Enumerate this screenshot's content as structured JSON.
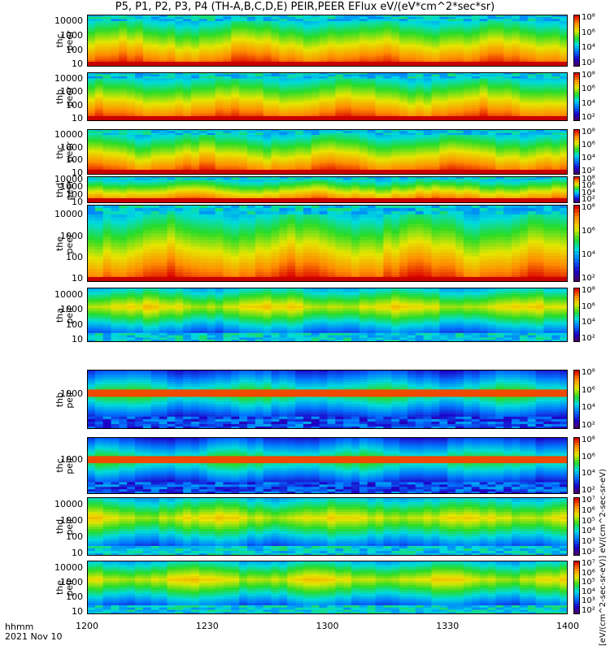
{
  "title": "P5, P1, P2, P3, P4 (TH-A,B,C,D,E) PEIR,PEER EFlux eV/(eV*cm^2*sec*sr)",
  "footer": {
    "time_label": "hhmm",
    "date_label": "2021 Nov 10"
  },
  "colorbar_units": "[eV/(cm^2-sec-sr-eV)] eV/(cm^2-sec-sr-eV)",
  "chart_data": {
    "type": "heatmap",
    "xlabel": "hhmm",
    "x_ticks": [
      "1200",
      "1230",
      "1300",
      "1330",
      "1400"
    ],
    "x_range": [
      "12:00",
      "14:00"
    ],
    "date": "2021 Nov 10",
    "y_scale": "log",
    "colorscale": "rainbow",
    "panels": [
      {
        "id": "thc-peer",
        "name": "thc\npeer",
        "species": "electrons",
        "yticks": [
          "10000",
          "1000",
          "100",
          "10"
        ],
        "ylim": [
          7,
          30000
        ],
        "cbar_ticks": [
          "10^8",
          "10^6",
          "10^4",
          "10^2"
        ]
      },
      {
        "id": "thb-peer",
        "name": "thb\npeer",
        "species": "electrons",
        "yticks": [
          "10000",
          "1000",
          "100",
          "10"
        ],
        "ylim": [
          7,
          30000
        ],
        "cbar_ticks": [
          "10^8",
          "10^6",
          "10^4",
          "10^2"
        ]
      },
      {
        "id": "thc-peer-2",
        "name": "thc\npeer",
        "species": "electrons",
        "yticks": [
          "10000",
          "1000",
          "100",
          "10"
        ],
        "ylim": [
          7,
          30000
        ],
        "cbar_ticks": [
          "10^8",
          "10^6",
          "10^4",
          "10^2"
        ]
      },
      {
        "id": "thd-peer",
        "name": "thd\npeer",
        "species": "electrons",
        "yticks": [
          "10000",
          "1000",
          "100",
          "10"
        ],
        "ylim": [
          7,
          30000
        ],
        "cbar_ticks": [
          "10^8",
          "10^6",
          "10^4",
          "10^2"
        ]
      },
      {
        "id": "the-peer",
        "name": "the\npeer",
        "species": "electrons",
        "yticks": [
          "10000",
          "1000",
          "100",
          "10"
        ],
        "ylim": [
          7,
          30000
        ],
        "cbar_ticks": [
          "10^8",
          "10^6",
          "10^4",
          "10^2"
        ]
      },
      {
        "id": "tha-peir",
        "name": "tha\npeir",
        "species": "ions",
        "yticks": [
          "10000",
          "1000",
          "100",
          "10"
        ],
        "ylim": [
          7,
          30000
        ],
        "cbar_ticks": [
          "10^8",
          "10^6",
          "10^4",
          "10^2"
        ]
      },
      {
        "id": "thb-peir",
        "name": "thb\npeir",
        "species": "ions",
        "yticks": [
          "1000"
        ],
        "ylim": [
          7,
          30000
        ],
        "cbar_ticks": [
          "10^8",
          "10^6",
          "10^4",
          "10^2"
        ]
      },
      {
        "id": "thc-peir",
        "name": "thc\npeir",
        "species": "ions",
        "yticks": [
          "1000"
        ],
        "ylim": [
          7,
          30000
        ],
        "cbar_ticks": [
          "10^8",
          "10^6",
          "10^4",
          "10^2"
        ]
      },
      {
        "id": "thd-peir",
        "name": "thd\npeir",
        "species": "ions",
        "yticks": [
          "10000",
          "1000",
          "100",
          "10"
        ],
        "ylim": [
          7,
          30000
        ],
        "cbar_ticks": [
          "10^7",
          "10^6",
          "10^5",
          "10^4",
          "10^3",
          "10^2"
        ]
      },
      {
        "id": "the-peir",
        "name": "the\npeir",
        "species": "ions",
        "yticks": [
          "10000",
          "1000",
          "100",
          "10"
        ],
        "ylim": [
          7,
          30000
        ],
        "cbar_ticks": [
          "10^7",
          "10^6",
          "10^5",
          "10^4",
          "10^3",
          "10^2"
        ]
      }
    ]
  }
}
